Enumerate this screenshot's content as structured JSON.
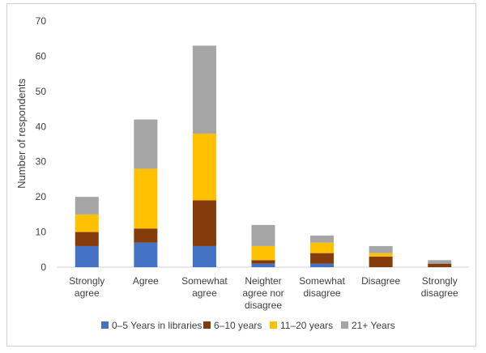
{
  "chart_data": {
    "type": "bar",
    "stacked": true,
    "title": "",
    "xlabel": "",
    "ylabel": "Number of respondents",
    "ylim": [
      0,
      70
    ],
    "yticks": [
      0,
      10,
      20,
      30,
      40,
      50,
      60,
      70
    ],
    "grid": false,
    "legend_position": "bottom",
    "categories": [
      [
        "Strongly",
        "agree"
      ],
      [
        "Agree"
      ],
      [
        "Somewhat",
        "agree"
      ],
      [
        "Neighter",
        "agree nor",
        "disagree"
      ],
      [
        "Somewhat",
        "disagree"
      ],
      [
        "Disagree"
      ],
      [
        "Strongly",
        "disagree"
      ]
    ],
    "series": [
      {
        "name": "0–5 Years in libraries",
        "color": "#4472C4",
        "values": [
          6,
          7,
          6,
          1,
          1,
          0,
          0
        ]
      },
      {
        "name": "6–10 years",
        "color": "#843C0C",
        "values": [
          4,
          4,
          13,
          1,
          3,
          3,
          1
        ]
      },
      {
        "name": "11–20 years",
        "color": "#FFC000",
        "values": [
          5,
          17,
          19,
          4,
          3,
          1,
          0
        ]
      },
      {
        "name": "21+ Years",
        "color": "#A5A5A5",
        "values": [
          5,
          14,
          25,
          6,
          2,
          2,
          1
        ]
      }
    ]
  }
}
